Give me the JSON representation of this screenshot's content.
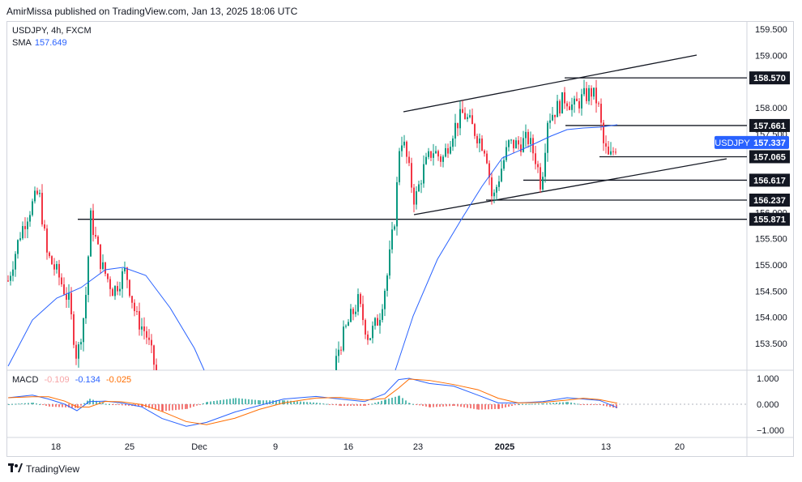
{
  "header": {
    "published": "AmirMissa published on TradingView.com, Jan 13, 2025 18:06 UTC"
  },
  "legend": {
    "symbol": "USDJPY, 4h, FXCM",
    "sma_label": "SMA",
    "sma_value": "157.649"
  },
  "macd": {
    "label": "MACD",
    "hist": "-0.109",
    "macd": "-0.134",
    "signal": "-0.025"
  },
  "colors": {
    "up": "#089981",
    "down": "#f23645",
    "sma": "#2962ff",
    "signal": "#ff6d00",
    "badge": "#2962ff",
    "hline_label_bg": "#131722"
  },
  "footer": {
    "brand": "TradingView",
    "logo_icon": "tradingview-logo-icon"
  },
  "chart_data": {
    "type": "candlestick",
    "symbol": "USDJPY",
    "timeframe": "4h",
    "ylim": [
      153.0,
      159.6
    ],
    "y_ticks": [
      "159.500",
      "159.000",
      "158.000",
      "157.500",
      "156.000",
      "155.500",
      "155.000",
      "154.500",
      "154.000",
      "153.500"
    ],
    "x_ticks": [
      "18",
      "25",
      "Dec",
      "9",
      "16",
      "23",
      "2025",
      "13",
      "20"
    ],
    "current_price_label": "USDJPY",
    "current_price": "157.337",
    "horizontal_levels": [
      "158.570",
      "157.661",
      "157.065",
      "156.617",
      "156.237",
      "155.871"
    ],
    "sma_current": 157.649,
    "macd_ylim": [
      -1.2,
      1.2
    ],
    "macd_ticks": [
      "1.000",
      "0.000",
      "−1.000"
    ]
  }
}
